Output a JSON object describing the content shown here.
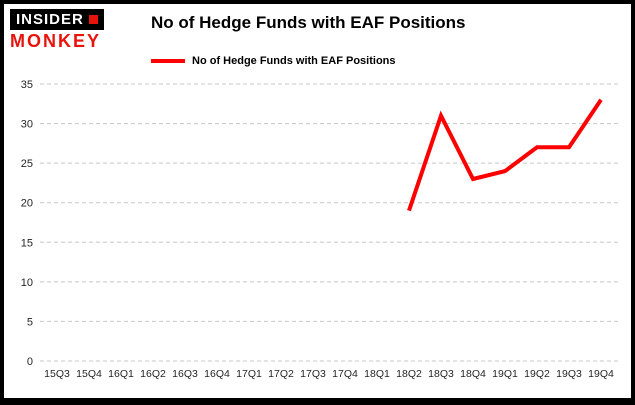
{
  "brand": {
    "line1": "INSIDER",
    "line2": "MONKEY",
    "accent_color": "#e8140c"
  },
  "title": "No of Hedge Funds with EAF Positions",
  "legend": {
    "label": "No of Hedge Funds with EAF Positions",
    "color": "#fe0000"
  },
  "chart_data": {
    "type": "line",
    "title": "No of Hedge Funds with EAF Positions",
    "categories": [
      "15Q3",
      "15Q4",
      "16Q1",
      "16Q2",
      "16Q3",
      "16Q4",
      "17Q1",
      "17Q2",
      "17Q3",
      "17Q4",
      "18Q1",
      "18Q2",
      "18Q3",
      "18Q4",
      "19Q1",
      "19Q2",
      "19Q3",
      "19Q4"
    ],
    "series": [
      {
        "name": "No of Hedge Funds with EAF Positions",
        "color": "#fe0000",
        "values": [
          null,
          null,
          null,
          null,
          null,
          null,
          null,
          null,
          null,
          null,
          null,
          19,
          31,
          23,
          24,
          27,
          27,
          33
        ]
      }
    ],
    "ylim": [
      0,
      35
    ],
    "yticks": [
      0,
      5,
      10,
      15,
      20,
      25,
      30,
      35
    ],
    "grid": true,
    "grid_color": "#c8c8c8",
    "tick_label_color": "#262626",
    "legend_position": "top-left",
    "xlabel": "",
    "ylabel": ""
  }
}
